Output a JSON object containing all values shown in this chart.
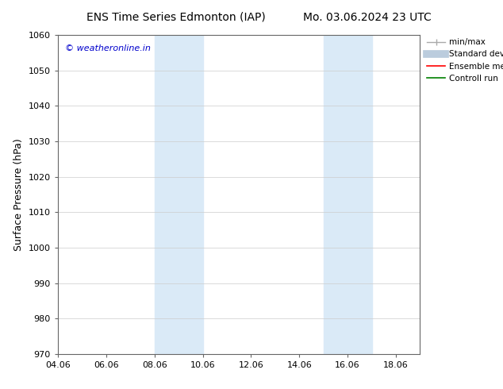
{
  "title_left": "ENS Time Series Edmonton (IAP)",
  "title_right": "Mo. 03.06.2024 23 UTC",
  "ylabel": "Surface Pressure (hPa)",
  "xlim": [
    4.06,
    19.06
  ],
  "ylim": [
    970,
    1060
  ],
  "yticks": [
    970,
    980,
    990,
    1000,
    1010,
    1020,
    1030,
    1040,
    1050,
    1060
  ],
  "xtick_labels": [
    "04.06",
    "06.06",
    "08.06",
    "10.06",
    "12.06",
    "14.06",
    "16.06",
    "18.06"
  ],
  "xtick_positions": [
    4.06,
    6.06,
    8.06,
    10.06,
    12.06,
    14.06,
    16.06,
    18.06
  ],
  "bg_color": "#ffffff",
  "plot_bg_color": "#ffffff",
  "shaded_regions": [
    {
      "xmin": 8.06,
      "xmax": 10.06,
      "color": "#daeaf7"
    },
    {
      "xmin": 15.06,
      "xmax": 17.06,
      "color": "#daeaf7"
    }
  ],
  "watermark_text": "© weatheronline.in",
  "watermark_color": "#0000cc",
  "grid_color": "#cccccc",
  "title_fontsize": 10,
  "tick_fontsize": 8,
  "ylabel_fontsize": 9,
  "legend_fontsize": 7.5
}
